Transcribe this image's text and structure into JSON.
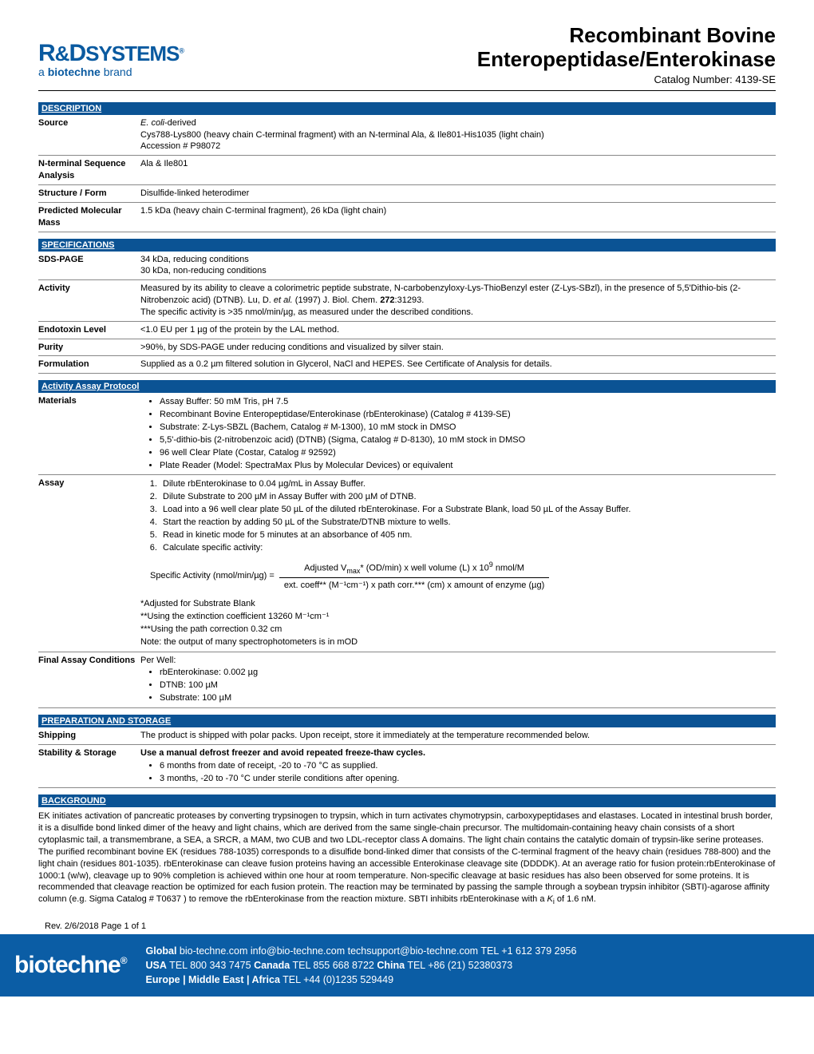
{
  "header": {
    "logo_main_1": "R",
    "logo_main_2": "D",
    "logo_main_3": "SYSTEMS",
    "logo_sub_pre": "a ",
    "logo_sub_bold": "biotechne",
    "logo_sub_post": " brand",
    "title_line1": "Recombinant Bovine",
    "title_line2": "Enteropeptidase/Enterokinase",
    "catalog": "Catalog Number:  4139-SE"
  },
  "sections": {
    "description": "DESCRIPTION",
    "specifications": "SPECIFICATIONS",
    "assay_protocol": "Activity Assay Protocol",
    "preparation": "PREPARATION AND STORAGE",
    "background": "BACKGROUND"
  },
  "description": {
    "source_label": "Source",
    "source_line1_i": "E. coli",
    "source_line1_post": "-derived",
    "source_line2": "Cys788-Lys800 (heavy chain C-terminal fragment) with an N-terminal Ala, & Ile801-His1035 (light chain)",
    "source_line3": "Accession # P98072",
    "nterm_label": "N-terminal Sequence Analysis",
    "nterm_val": "Ala & Ile801",
    "struct_label": "Structure / Form",
    "struct_val": "Disulfide-linked heterodimer",
    "mass_label": "Predicted Molecular Mass",
    "mass_val": "1.5 kDa (heavy chain C-terminal fragment), 26 kDa (light chain)"
  },
  "specs": {
    "sds_label": "SDS-PAGE",
    "sds_l1": "34 kDa, reducing conditions",
    "sds_l2": "30 kDa, non-reducing conditions",
    "act_label": "Activity",
    "act_l1_pre": "Measured by its ability to cleave a colorimetric peptide substrate, N-carbobenzyloxy-Lys-ThioBenzyl ester (Z-Lys-SBzl), in the presence of 5,5'Dithio-bis (2-Nitrobenzoic acid) (DTNB). Lu, D. ",
    "act_l1_i": "et al.",
    "act_l1_post": " (1997) J. Biol. Chem. ",
    "act_l1_b": "272",
    "act_l1_end": ":31293.",
    "act_l2": "The specific activity is >35 nmol/min/µg, as measured under the described conditions.",
    "endo_label": "Endotoxin Level",
    "endo_val": "<1.0 EU per 1 µg of the protein by the LAL method.",
    "purity_label": "Purity",
    "purity_val": ">90%, by SDS-PAGE under reducing conditions and visualized by silver stain.",
    "form_label": "Formulation",
    "form_val": "Supplied as a 0.2 µm filtered solution in Glycerol, NaCl and HEPES. See Certificate of Analysis for details."
  },
  "protocol": {
    "materials_label": "Materials",
    "materials": [
      "Assay Buffer: 50 mM Tris, pH 7.5",
      "Recombinant Bovine Enteropeptidase/Enterokinase (rbEnterokinase) (Catalog # 4139-SE)",
      "Substrate: Z-Lys-SBZL (Bachem, Catalog # M-1300), 10 mM stock in DMSO",
      "5,5'-dithio-bis (2-nitrobenzoic acid) (DTNB) (Sigma, Catalog # D-8130), 10 mM stock in DMSO",
      "96 well Clear Plate (Costar, Catalog #  92592)",
      "Plate Reader (Model: SpectraMax Plus by Molecular Devices) or equivalent"
    ],
    "assay_label": "Assay",
    "steps": [
      "Dilute rbEnterokinase to 0.04 µg/mL in Assay Buffer.",
      "Dilute Substrate to 200 µM in Assay Buffer with 200 µM of DTNB.",
      "Load into a 96 well clear plate 50 µL of the diluted rbEnterokinase. For a Substrate Blank, load 50 µL of the Assay Buffer.",
      "Start the reaction by adding 50 µL of the Substrate/DTNB mixture to wells.",
      "Read in kinetic mode for 5 minutes at an absorbance of 405 nm.",
      "Calculate specific activity:"
    ],
    "formula_lhs": "Specific Activity (nmol/min/µg) =",
    "formula_top_pre": "Adjusted V",
    "formula_top_sub": "max",
    "formula_top_post": "* (OD/min) x well volume (L) x 10",
    "formula_top_sup": "9",
    "formula_top_end": " nmol/M",
    "formula_bot": "ext. coeff** (M⁻¹cm⁻¹) x path corr.*** (cm) x amount of enzyme (µg)",
    "note1": "*Adjusted for Substrate Blank",
    "note2": "**Using the extinction coefficient 13260 M⁻¹cm⁻¹",
    "note3": "***Using the path correction 0.32 cm",
    "note4": "Note: the output of many spectrophotometers is in mOD",
    "final_label": "Final Assay Conditions",
    "final_pre": "Per Well:",
    "final_items": [
      "rbEnterokinase: 0.002 µg",
      "DTNB: 100 µM",
      "Substrate: 100 µM"
    ]
  },
  "prep": {
    "ship_label": "Shipping",
    "ship_val": "The product is shipped with polar packs. Upon receipt, store it immediately at the temperature recommended below.",
    "stor_label": "Stability & Storage",
    "stor_head": "Use a manual defrost freezer and avoid repeated freeze-thaw cycles.",
    "stor_items": [
      "6 months from date of receipt, -20 to -70 °C as supplied.",
      "3 months, -20 to -70 °C under sterile conditions after opening."
    ]
  },
  "background": {
    "text_pre": "EK initiates activation of pancreatic proteases by converting trypsinogen to trypsin, which in turn activates chymotrypsin, carboxypeptidases and elastases. Located in intestinal brush border, it is a disulfide bond linked dimer of the heavy and light chains, which are derived from the same single-chain precursor. The multidomain-containing heavy chain consists of a short cytoplasmic tail, a transmembrane, a SEA, a SRCR, a MAM, two CUB and two LDL-receptor class A domains. The light chain contains the catalytic domain of trypsin-like serine proteases. The purified recombinant bovine EK (residues 788-1035) corresponds to a disulfide bond-linked dimer that consists of the C-terminal fragment of the heavy chain (residues 788-800) and the light chain (residues 801-1035). rbEnterokinase can cleave fusion proteins having an accessible Enterokinase cleavage site (DDDDK). At an average ratio for fusion protein:rbEnterokinase of 1000:1 (w/w), cleavage up to 90% completion is achieved within one hour at room temperature. Non-specific cleavage at basic residues has also been observed for some proteins. It is recommended that cleavage reaction be optimized for each fusion protein. The reaction may be terminated by passing the sample through a soybean trypsin inhibitor (SBTI)-agarose affinity column (e.g. Sigma Catalog # T0637 ) to remove the rbEnterokinase from the reaction mixture. SBTI inhibits rbEnterokinase with a ",
    "text_ki": "K",
    "text_ki_sub": "i",
    "text_post": " of 1.6 nM."
  },
  "rev": "Rev. 2/6/2018 Page 1 of 1",
  "footer": {
    "logo": "biotechne",
    "line1_b1": "Global",
    "line1_t1": " bio-techne.com  info@bio-techne.com  techsupport@bio-techne.com  TEL +1 612 379 2956",
    "line2_b1": "USA",
    "line2_t1": " TEL 800 343 7475   ",
    "line2_b2": "Canada",
    "line2_t2": "  TEL 855 668 8722   ",
    "line2_b3": "China",
    "line2_t3": "  TEL +86 (21) 52380373",
    "line3_b1": "Europe | Middle East | Africa",
    "line3_t1": "  TEL +44 (0)1235 529449"
  },
  "colors": {
    "section_bg": "#0b5394",
    "footer_bg": "#0b5da5",
    "logo_color": "#0a5aa0"
  }
}
